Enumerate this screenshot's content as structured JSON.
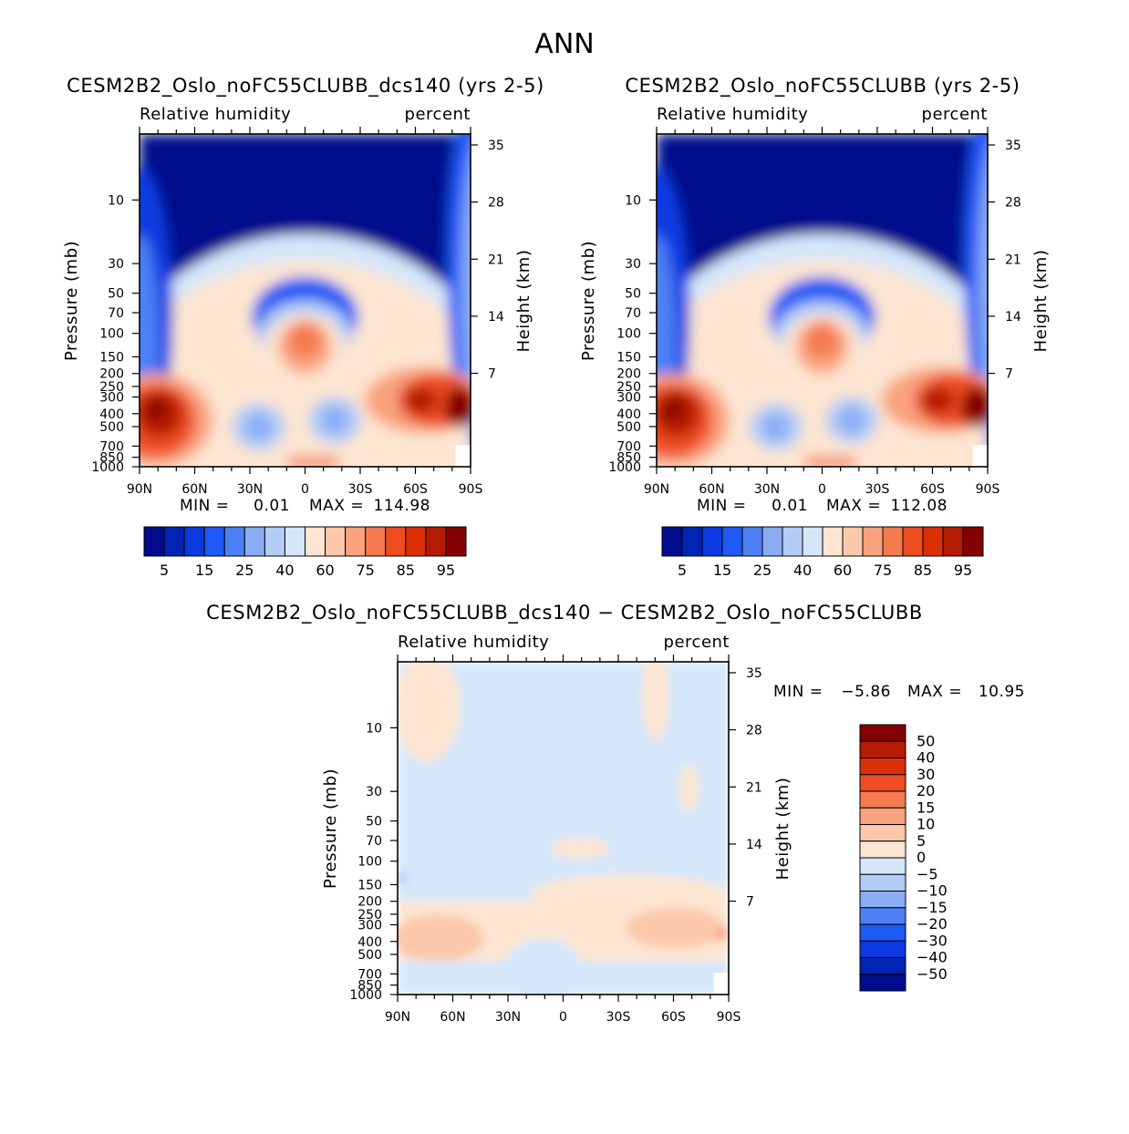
{
  "page_title": "ANN",
  "colors": {
    "rh_levels": [
      "#000c8c",
      "#0124b4",
      "#0a3ae0",
      "#1f59f5",
      "#4d80f5",
      "#89acf4",
      "#b3cdf6",
      "#d6e7fb",
      "#fde5d1",
      "#fbc8ab",
      "#f9a37e",
      "#f57a4f",
      "#ed4d21",
      "#dc2f06",
      "#b51b03",
      "#850000"
    ],
    "diff_levels": [
      "#000c8c",
      "#0124b4",
      "#0a3ae0",
      "#1f59f5",
      "#4d80f5",
      "#89acf4",
      "#b3cdf6",
      "#d6e7fb",
      "#fde5d1",
      "#fbc8ab",
      "#f9a37e",
      "#f57a4f",
      "#ed4d21",
      "#dc2f06",
      "#b51b03",
      "#850000"
    ]
  },
  "chart_data": [
    {
      "type": "heatmap",
      "title": "CESM2B2_Oslo_noFC55CLUBB_dcs140 (yrs 2-5)",
      "variable": "Relative humidity",
      "units": "percent",
      "xlabel": "",
      "ylabel": "Pressure (mb)",
      "ylabel_right": "Height (km)",
      "x_ticks": [
        "90N",
        "60N",
        "30N",
        "0",
        "30S",
        "60S",
        "90S"
      ],
      "y_ticks": [
        "10",
        "30",
        "50",
        "70",
        "100",
        "150",
        "200",
        "250",
        "300",
        "400",
        "500",
        "700",
        "850",
        "1000"
      ],
      "y_right_ticks": [
        "35",
        "28",
        "21",
        "14",
        "7"
      ],
      "min_label": "MIN =",
      "min_value": "0.01",
      "max_label": "MAX =",
      "max_value": "114.98",
      "colorbar_labels": [
        "5",
        "15",
        "25",
        "40",
        "60",
        "75",
        "85",
        "95"
      ]
    },
    {
      "type": "heatmap",
      "title": "CESM2B2_Oslo_noFC55CLUBB (yrs 2-5)",
      "variable": "Relative humidity",
      "units": "percent",
      "xlabel": "",
      "ylabel": "Pressure (mb)",
      "ylabel_right": "Height (km)",
      "x_ticks": [
        "90N",
        "60N",
        "30N",
        "0",
        "30S",
        "60S",
        "90S"
      ],
      "y_ticks": [
        "10",
        "30",
        "50",
        "70",
        "100",
        "150",
        "200",
        "250",
        "300",
        "400",
        "500",
        "700",
        "850",
        "1000"
      ],
      "y_right_ticks": [
        "35",
        "28",
        "21",
        "14",
        "7"
      ],
      "min_label": "MIN =",
      "min_value": "0.01",
      "max_label": "MAX =",
      "max_value": "112.08",
      "colorbar_labels": [
        "5",
        "15",
        "25",
        "40",
        "60",
        "75",
        "85",
        "95"
      ]
    },
    {
      "type": "heatmap",
      "title": "CESM2B2_Oslo_noFC55CLUBB_dcs140 − CESM2B2_Oslo_noFC55CLUBB",
      "variable": "Relative humidity",
      "units": "percent",
      "xlabel": "",
      "ylabel": "Pressure (mb)",
      "ylabel_right": "Height (km)",
      "x_ticks": [
        "90N",
        "60N",
        "30N",
        "0",
        "30S",
        "60S",
        "90S"
      ],
      "y_ticks": [
        "10",
        "30",
        "50",
        "70",
        "100",
        "150",
        "200",
        "250",
        "300",
        "400",
        "500",
        "700",
        "850",
        "1000"
      ],
      "y_right_ticks": [
        "35",
        "28",
        "21",
        "14",
        "7"
      ],
      "min_label": "MIN =",
      "min_value": "−5.86",
      "max_label": "MAX =",
      "max_value": "10.95",
      "colorbar_labels": [
        "50",
        "40",
        "30",
        "20",
        "15",
        "10",
        "5",
        "0",
        "−5",
        "−10",
        "−15",
        "−20",
        "−30",
        "−40",
        "−50"
      ]
    }
  ]
}
